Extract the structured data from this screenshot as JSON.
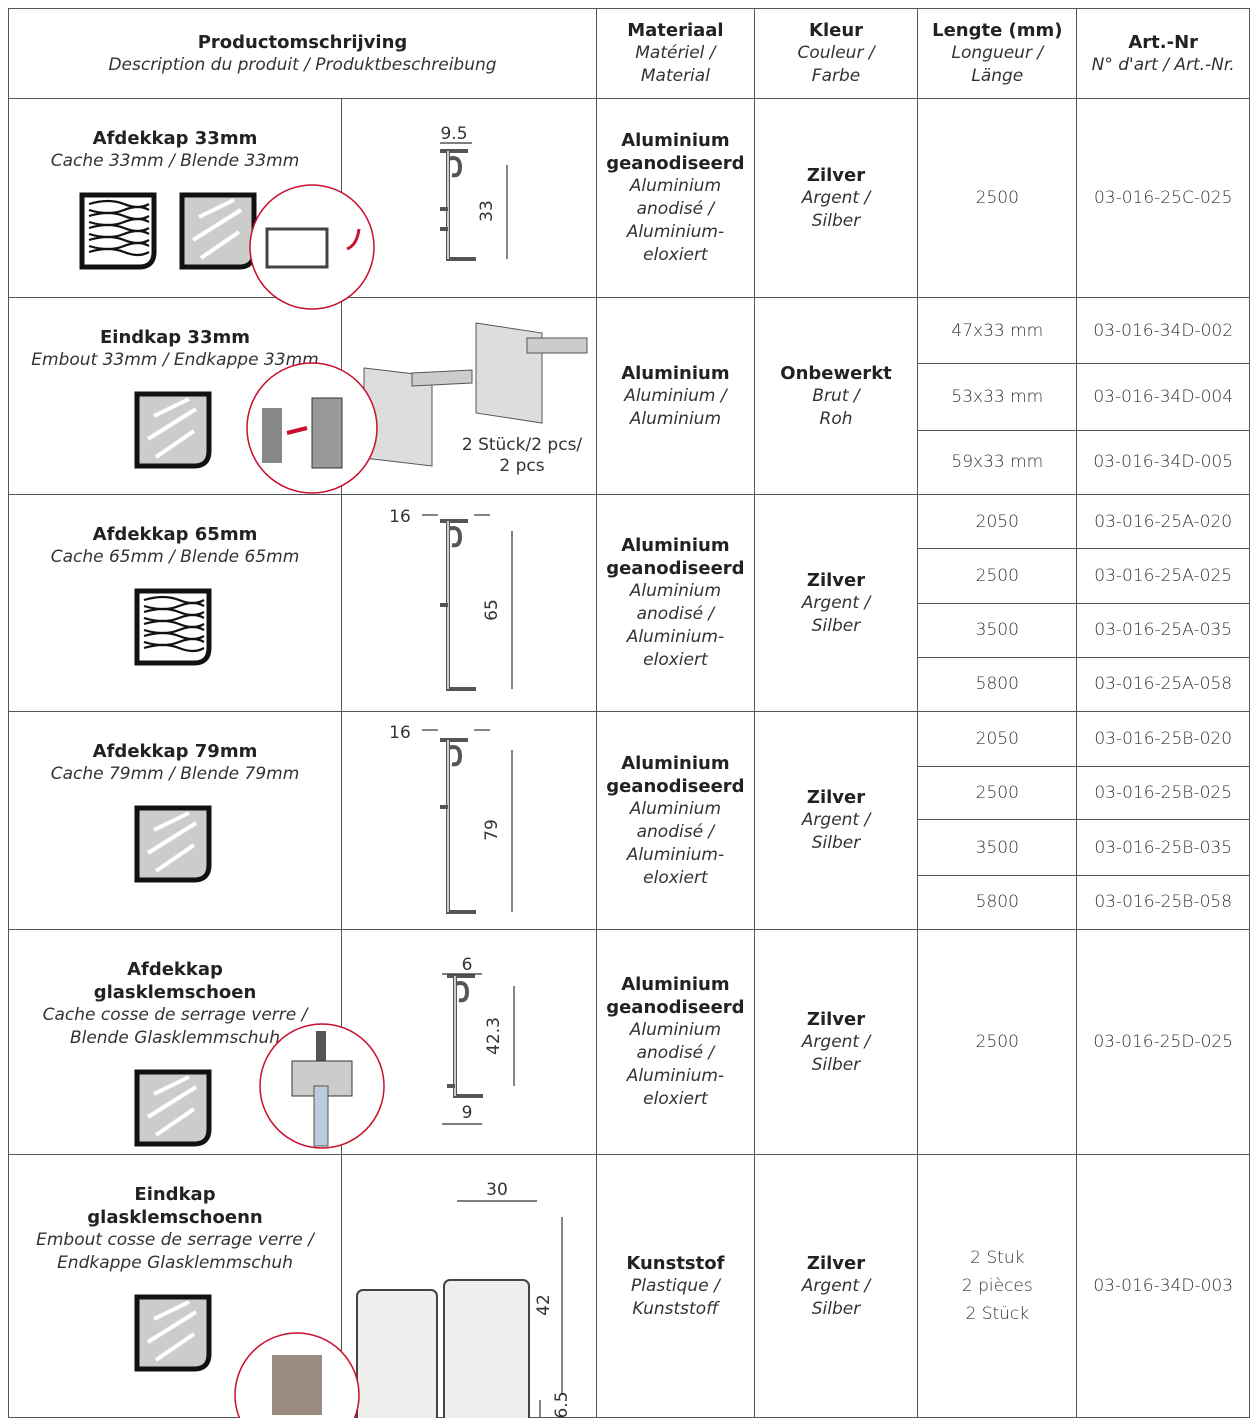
{
  "header": {
    "product": {
      "title": "Productomschrijving",
      "subtitle": "Description du produit / Produktbeschreibung"
    },
    "material": {
      "title": "Materiaal",
      "subtitle": "Matériel /\nMaterial"
    },
    "color": {
      "title": "Kleur",
      "subtitle": "Couleur /\nFarbe"
    },
    "length": {
      "title": "Lengte (mm)",
      "subtitle": "Longueur /\nLänge"
    },
    "art": {
      "title": "Art.-Nr",
      "subtitle": "N° d'art / Art.-Nr."
    }
  },
  "rows": [
    {
      "name": "Afdekkap 33mm",
      "desc": "Cache 33mm / Blende 33mm",
      "material": {
        "name": "Aluminium\ngeanodiseerd",
        "desc": "Aluminium\nanodisé /\nAluminium-\neloxiert"
      },
      "color": {
        "name": "Zilver",
        "desc": "Argent /\nSilber"
      },
      "variants": [
        {
          "length": 2500,
          "art": "03-016-25C-025"
        }
      ],
      "dims": [
        9.5,
        33
      ]
    },
    {
      "name": "Eindkap 33mm",
      "desc": "Embout 33mm / Endkappe 33mm",
      "material": {
        "name": "Aluminium",
        "desc": "Aluminium /\nAluminium"
      },
      "color": {
        "name": "Onbewerkt",
        "desc": "Brut /\nRoh"
      },
      "variants": [
        {
          "length": "47x33 mm",
          "art": "03-016-34D-002"
        },
        {
          "length": "53x33 mm",
          "art": "03-016-34D-004"
        },
        {
          "length": "59x33 mm",
          "art": "03-016-34D-005"
        }
      ],
      "note": "2 Stück/2 pcs/\n2 pcs"
    },
    {
      "name": "Afdekkap 65mm",
      "desc": "Cache 65mm / Blende 65mm",
      "material": {
        "name": "Aluminium\ngeanodiseerd",
        "desc": "Aluminium\nanodisé /\nAluminium-\neloxiert"
      },
      "color": {
        "name": "Zilver",
        "desc": "Argent /\nSilber"
      },
      "variants": [
        {
          "length": 2050,
          "art": "03-016-25A-020"
        },
        {
          "length": 2500,
          "art": "03-016-25A-025"
        },
        {
          "length": 3500,
          "art": "03-016-25A-035"
        },
        {
          "length": 5800,
          "art": "03-016-25A-058"
        }
      ],
      "dims": [
        16,
        65
      ]
    },
    {
      "name": "Afdekkap 79mm",
      "desc": "Cache 79mm / Blende 79mm",
      "material": {
        "name": "Aluminium\ngeanodiseerd",
        "desc": "Aluminium\nanodisé /\nAluminium-\neloxiert"
      },
      "color": {
        "name": "Zilver",
        "desc": "Argent /\nSilber"
      },
      "variants": [
        {
          "length": 2050,
          "art": "03-016-25B-020"
        },
        {
          "length": 2500,
          "art": "03-016-25B-025"
        },
        {
          "length": 3500,
          "art": "03-016-25B-035"
        },
        {
          "length": 5800,
          "art": "03-016-25B-058"
        }
      ],
      "dims": [
        16,
        79
      ]
    },
    {
      "name": "Afdekkap\nglasklemschoen",
      "desc": "Cache cosse de serrage verre /\nBlende Glasklemmschuh",
      "material": {
        "name": "Aluminium\ngeanodiseerd",
        "desc": "Aluminium\nanodisé /\nAluminium-\neloxiert"
      },
      "color": {
        "name": "Zilver",
        "desc": "Argent /\nSilber"
      },
      "variants": [
        {
          "length": 2500,
          "art": "03-016-25D-025"
        }
      ],
      "dims": [
        6,
        42.3,
        9
      ]
    },
    {
      "name": "Eindkap\nglasklemschoenn",
      "desc": "Embout cosse de serrage verre /\nEndkappe Glasklemmschuh",
      "material": {
        "name": "Kunststof",
        "desc": "Plastique /\nKunststoff"
      },
      "color": {
        "name": "Zilver",
        "desc": "Argent /\nSilber"
      },
      "variants": [
        {
          "length": "2 Stuk\n2 pièces\n2 Stück",
          "art": "03-016-34D-003"
        }
      ],
      "dims": [
        30,
        42,
        6.5
      ]
    }
  ]
}
